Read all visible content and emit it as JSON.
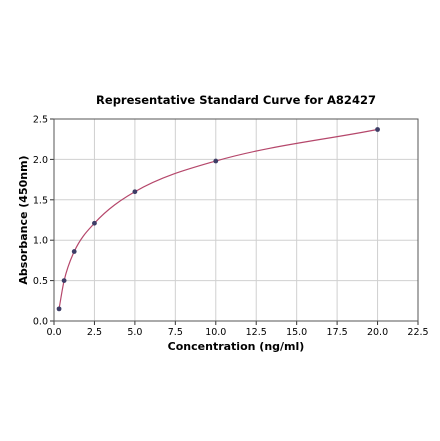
{
  "chart_data": {
    "type": "scatter",
    "title": "Representative Standard Curve for A82427",
    "xlabel": "Concentration (ng/ml)",
    "ylabel": "Absorbance (450nm)",
    "xlim": [
      0,
      22.5
    ],
    "ylim": [
      0,
      2.5
    ],
    "x_ticks": [
      "0.0",
      "2.5",
      "5.0",
      "7.5",
      "10.0",
      "12.5",
      "15.0",
      "17.5",
      "20.0",
      "22.5"
    ],
    "y_ticks": [
      "0.0",
      "0.5",
      "1.0",
      "1.5",
      "2.0",
      "2.5"
    ],
    "grid": true,
    "legend": "none",
    "series": [
      {
        "x": [
          0.3125,
          0.625,
          1.25,
          2.5,
          5,
          10,
          20
        ],
        "y": [
          0.15,
          0.5,
          0.86,
          1.21,
          1.6,
          1.98,
          2.37
        ],
        "fit": "smooth curve"
      }
    ],
    "colors": {
      "points": "#3d3d66",
      "curve": "#b5476b",
      "grid": "#d0d0d0"
    }
  }
}
